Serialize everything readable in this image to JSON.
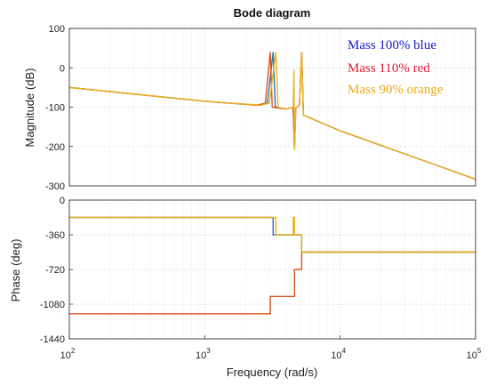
{
  "chart_data": {
    "type": "line",
    "title": "Bode diagram",
    "xlabel": "Frequency  (rad/s)",
    "x_scale": "log",
    "xlim": [
      100,
      100000
    ],
    "x_ticks": [
      {
        "base": "10",
        "exp": "2"
      },
      {
        "base": "10",
        "exp": "3"
      },
      {
        "base": "10",
        "exp": "4"
      },
      {
        "base": "10",
        "exp": "5"
      }
    ],
    "grid": true,
    "legend": {
      "placement": "top-right",
      "entries": [
        {
          "text": "Mass 100% blue",
          "color": "#1a1acc"
        },
        {
          "text": "Mass 110% red",
          "color": "#e0203a"
        },
        {
          "text": "Mass 90% orange",
          "color": "#f0a818"
        }
      ]
    },
    "panels": [
      {
        "name": "magnitude",
        "ylabel": "Magnitude (dB)",
        "ylim": [
          -300,
          100
        ],
        "y_ticks": [
          "100",
          "0",
          "-100",
          "-200",
          "-300"
        ],
        "series": [
          {
            "color": "#1f77b4",
            "points": [
              [
                100,
                -50
              ],
              [
                1000,
                -85
              ],
              [
                2500,
                -95
              ],
              [
                2900,
                -90
              ],
              [
                3200,
                40
              ],
              [
                3320,
                -100
              ],
              [
                4000,
                -105
              ],
              [
                4500,
                -100
              ],
              [
                4600,
                -208
              ],
              [
                4700,
                -102
              ],
              [
                5000,
                -95
              ],
              [
                5200,
                40
              ],
              [
                5350,
                -120
              ],
              [
                10000,
                -160
              ],
              [
                100000,
                -283
              ]
            ]
          },
          {
            "color": "#d9541e",
            "points": [
              [
                100,
                -50
              ],
              [
                1000,
                -85
              ],
              [
                2400,
                -95
              ],
              [
                2800,
                -90
              ],
              [
                3050,
                40
              ],
              [
                3150,
                -100
              ],
              [
                4000,
                -105
              ],
              [
                4500,
                -100
              ],
              [
                4600,
                -208
              ],
              [
                4700,
                -102
              ],
              [
                5000,
                -95
              ],
              [
                5200,
                40
              ],
              [
                5350,
                -120
              ],
              [
                10000,
                -160
              ],
              [
                100000,
                -283
              ]
            ]
          },
          {
            "color": "#edb120",
            "points": [
              [
                100,
                -50
              ],
              [
                1000,
                -85
              ],
              [
                2600,
                -95
              ],
              [
                3000,
                -90
              ],
              [
                3350,
                40
              ],
              [
                3480,
                -100
              ],
              [
                4000,
                -105
              ],
              [
                4500,
                -100
              ],
              [
                4560,
                -5
              ],
              [
                4600,
                -208
              ],
              [
                4700,
                -102
              ],
              [
                5000,
                -95
              ],
              [
                5200,
                40
              ],
              [
                5350,
                -120
              ],
              [
                10000,
                -160
              ],
              [
                100000,
                -283
              ]
            ]
          }
        ]
      },
      {
        "name": "phase",
        "ylabel": "Phase (deg)",
        "ylim": [
          -1440,
          0
        ],
        "y_ticks": [
          "0",
          "-360",
          "-720",
          "-1080",
          "-1440"
        ],
        "series": [
          {
            "color": "#1f77b4",
            "points": [
              [
                100,
                -180
              ],
              [
                3200,
                -180
              ],
              [
                3200,
                -360
              ],
              [
                5200,
                -360
              ],
              [
                5200,
                -540
              ],
              [
                100000,
                -540
              ]
            ]
          },
          {
            "color": "#d9541e",
            "points": [
              [
                100,
                -1180
              ],
              [
                3050,
                -1180
              ],
              [
                3050,
                -1000
              ],
              [
                4600,
                -1000
              ],
              [
                4600,
                -720
              ],
              [
                5200,
                -720
              ],
              [
                5200,
                -540
              ],
              [
                100000,
                -540
              ]
            ]
          },
          {
            "color": "#edb120",
            "points": [
              [
                100,
                -180
              ],
              [
                3350,
                -180
              ],
              [
                3350,
                -360
              ],
              [
                4500,
                -360
              ],
              [
                4500,
                -180
              ],
              [
                4600,
                -180
              ],
              [
                4600,
                -360
              ],
              [
                5200,
                -360
              ],
              [
                5200,
                -540
              ],
              [
                100000,
                -540
              ]
            ]
          }
        ]
      }
    ]
  }
}
